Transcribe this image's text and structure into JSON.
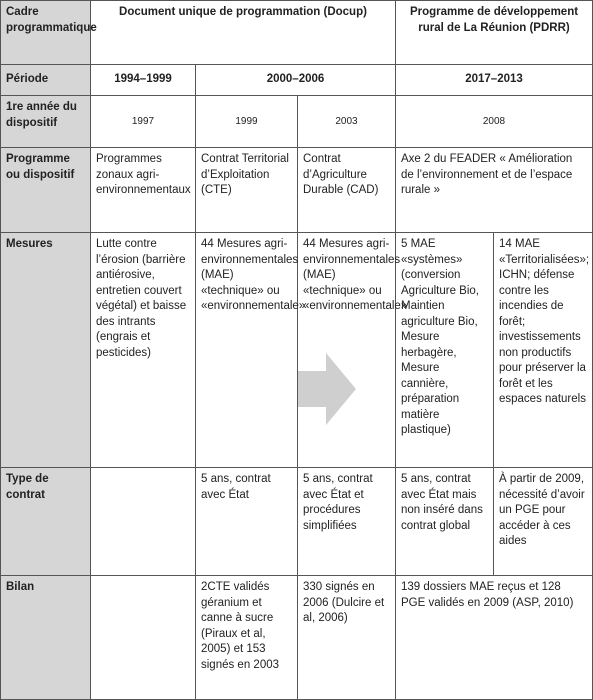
{
  "table": {
    "rows": [
      [
        "Cadre programmatique",
        "Document unique de programmation (Docup)",
        "Programme de développement rural de La Réunion (PDRR)"
      ],
      [
        "Période",
        "1994–1999",
        "2000–2006",
        "2017–2013"
      ],
      [
        "1re année du dispositif",
        "1997",
        "1999",
        "2003",
        "2008"
      ],
      [
        "Programme ou dispositif",
        "Programmes zonaux agri-environnementaux",
        "Contrat Territorial d’Exploitation (CTE)",
        "Contrat d’Agriculture Durable (CAD)",
        "Axe 2 du FEADER « Amélioration de l’environnement et de l’espace rurale »"
      ],
      [
        "Mesures",
        "Lutte contre l’érosion (barrière antiérosive, entretien couvert végétal) et baisse des intrants (engrais et pesticides)",
        "44 Mesures agri-environnementales (MAE) «technique» ou «environnementale»",
        "44 Mesures agri-environnementales (MAE) «technique» ou «environnementale»",
        "5 MAE «systèmes» (conversion Agriculture Bio, Maintien agriculture Bio, Mesure herbagère, Mesure cannière, préparation matière plastique)",
        "14 MAE «Territorialisées»; ICHN; défense contre les incendies de forêt; investissements non productifs pour préserver la forêt et les espaces naturels"
      ],
      [
        "Type de contrat",
        "5 ans, contrat avec État",
        "5 ans, contrat avec État et procédures simplifiées",
        "5 ans, contrat avec État mais non inséré dans contrat global",
        "À partir de 2009, nécessité d’avoir un PGE pour accéder à ces aides"
      ],
      [
        "Bilan",
        "2CTE validés géranium et canne à sucre (Piraux et al, 2005) et 153 signés en 2003",
        "330 signés en 2006 (Dulcire et al, 2006)",
        "139 dossiers MAE reçus et 128 PGE validés en 2009 (ASP, 2010)"
      ]
    ]
  }
}
